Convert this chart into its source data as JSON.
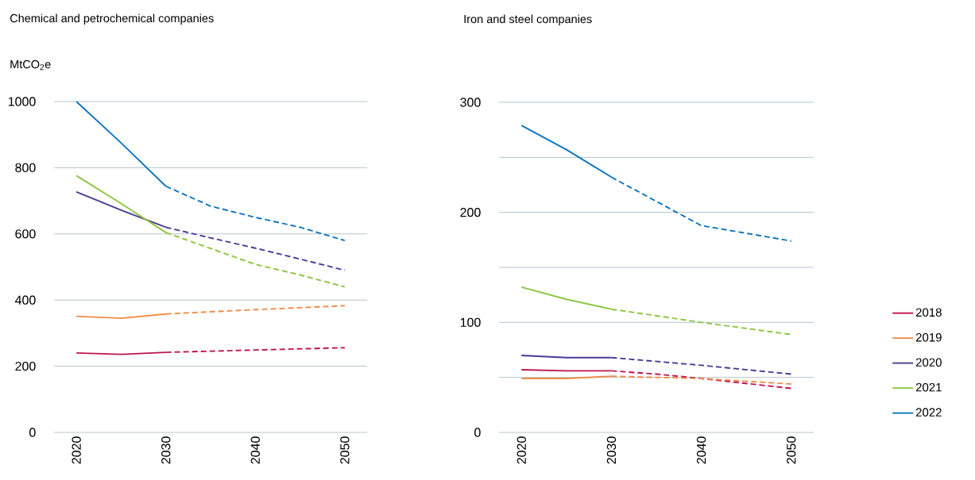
{
  "chart_data": [
    {
      "type": "line",
      "title": "Chemical and petrochemical companies",
      "ylabel": "MtCO$_{2}$e",
      "xlim": [
        2017.5,
        2052.5
      ],
      "xticks": [
        2020,
        2030,
        2040,
        2050
      ],
      "ylim": [
        0,
        1000
      ],
      "yticks": [
        0,
        200,
        400,
        600,
        800,
        1000
      ],
      "grid": "y",
      "series": [
        {
          "name": "2018",
          "color": "#c0144c",
          "line_style": "solid",
          "x": [
            2020,
            2025,
            2030
          ],
          "values": [
            240,
            236,
            242
          ]
        },
        {
          "color": "#c0144c",
          "line_style": "dashed",
          "x": [
            2030,
            2040,
            2050
          ],
          "values": [
            242,
            249,
            256
          ]
        },
        {
          "name": "2019",
          "color": "#f08c4a",
          "line_style": "solid",
          "x": [
            2020,
            2025,
            2030
          ],
          "values": [
            351,
            345,
            358
          ]
        },
        {
          "color": "#f08c4a",
          "line_style": "dashed",
          "x": [
            2030,
            2040,
            2050
          ],
          "values": [
            358,
            371,
            383
          ]
        },
        {
          "name": "2020",
          "color": "#4b3a96",
          "line_style": "solid",
          "x": [
            2020,
            2025,
            2030
          ],
          "values": [
            727,
            672,
            620
          ]
        },
        {
          "color": "#4b3a96",
          "line_style": "dashed",
          "x": [
            2030,
            2035,
            2040,
            2045,
            2050
          ],
          "values": [
            620,
            588,
            557,
            524,
            490
          ]
        },
        {
          "name": "2021",
          "color": "#8cc63f",
          "line_style": "solid",
          "x": [
            2020,
            2025,
            2030
          ],
          "values": [
            776,
            692,
            604
          ]
        },
        {
          "color": "#8cc63f",
          "line_style": "dashed",
          "x": [
            2030,
            2035,
            2040,
            2045,
            2050
          ],
          "values": [
            604,
            556,
            508,
            476,
            440
          ]
        },
        {
          "name": "2022",
          "color": "#0b74c0",
          "line_style": "solid",
          "x": [
            2020,
            2025,
            2030
          ],
          "values": [
            1000,
            875,
            744
          ]
        },
        {
          "color": "#0b74c0",
          "line_style": "dashed",
          "x": [
            2030,
            2035,
            2040,
            2045,
            2050
          ],
          "values": [
            744,
            684,
            650,
            620,
            580
          ]
        }
      ]
    },
    {
      "type": "line",
      "title": "Iron and steel companies",
      "xlim": [
        2017.5,
        2052.5
      ],
      "xticks": [
        2020,
        2030,
        2040,
        2050
      ],
      "ylim": [
        0,
        300
      ],
      "yticks": [
        0,
        {
          "value": 50,
          "label": null
        },
        100,
        {
          "value": 150,
          "label": null
        },
        200,
        {
          "value": 250,
          "label": null
        },
        300
      ],
      "grid": "y",
      "legend": "right",
      "series": [
        {
          "name": "2018",
          "color": "#c0144c",
          "line_style": "solid",
          "x": [
            2020,
            2025,
            2030
          ],
          "values": [
            57,
            56,
            56
          ]
        },
        {
          "color": "#c0144c",
          "line_style": "dashed",
          "x": [
            2030,
            2035,
            2040,
            2050
          ],
          "values": [
            56,
            53,
            49,
            40
          ]
        },
        {
          "name": "2019",
          "color": "#f08c4a",
          "line_style": "solid",
          "x": [
            2020,
            2025,
            2030
          ],
          "values": [
            49,
            49,
            51
          ]
        },
        {
          "color": "#f08c4a",
          "line_style": "dashed",
          "x": [
            2030,
            2040,
            2050
          ],
          "values": [
            51,
            49,
            44
          ]
        },
        {
          "name": "2020",
          "color": "#4b3a96",
          "line_style": "solid",
          "x": [
            2020,
            2025,
            2030
          ],
          "values": [
            70,
            68,
            68
          ]
        },
        {
          "color": "#4b3a96",
          "line_style": "dashed",
          "x": [
            2030,
            2040,
            2050
          ],
          "values": [
            68,
            61,
            53
          ]
        },
        {
          "name": "2021",
          "color": "#8cc63f",
          "line_style": "solid",
          "x": [
            2020,
            2025,
            2030
          ],
          "values": [
            132,
            121,
            112
          ]
        },
        {
          "color": "#8cc63f",
          "line_style": "dashed",
          "x": [
            2030,
            2040,
            2050
          ],
          "values": [
            112,
            100,
            89
          ]
        },
        {
          "name": "2022",
          "color": "#0b74c0",
          "line_style": "solid",
          "x": [
            2020,
            2025,
            2030
          ],
          "values": [
            279,
            257,
            232
          ]
        },
        {
          "color": "#0b74c0",
          "line_style": "dashed",
          "x": [
            2030,
            2035,
            2040,
            2045,
            2050
          ],
          "values": [
            232,
            210,
            188,
            181,
            174
          ]
        }
      ]
    }
  ]
}
